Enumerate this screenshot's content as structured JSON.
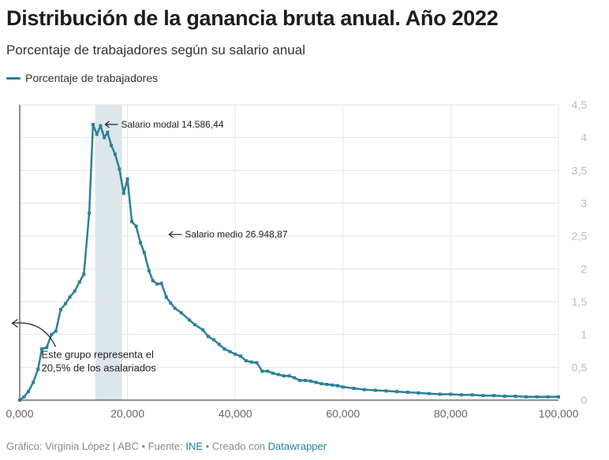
{
  "header": {
    "title": "Distribución de la ganancia bruta anual. Año 2022",
    "subtitle": "Porcentaje de trabajadores según su salario anual"
  },
  "legend": {
    "label": "Porcentaje de trabajadores",
    "color": "#2a8199"
  },
  "footer": {
    "prefix": "Gráfico: Virginia López | ABC • Fuente: ",
    "source_link": "INE",
    "middle": " • Creado con ",
    "tool_link": "Datawrapper"
  },
  "colors": {
    "line": "#2a8199",
    "highlight_band": "#dce6eb",
    "grid": "#e6e6e6",
    "tick_text": "#bbbbbb",
    "x_tick_text": "#666666"
  },
  "chart_data": {
    "type": "line",
    "xlim": [
      0,
      100000
    ],
    "ylim": [
      0,
      4.5
    ],
    "grid": true,
    "legend_position": "top-left",
    "x_ticks": [
      0,
      20000,
      40000,
      60000,
      80000,
      100000
    ],
    "x_tick_labels": [
      "0,000",
      "20,000",
      "40,000",
      "60,000",
      "80,000",
      "100,000"
    ],
    "y_ticks": [
      0,
      0.5,
      1,
      1.5,
      2,
      2.5,
      3,
      3.5,
      4,
      4.5
    ],
    "y_tick_labels": [
      "0",
      "0,5",
      "1",
      "1,5",
      "2",
      "2,5",
      "3",
      "3,5",
      "4",
      "4,5"
    ],
    "highlight_band": {
      "x_start": 14000,
      "x_end": 19000
    },
    "annotations": [
      {
        "text": "Salario modal 14.586,44",
        "x": 15000,
        "y": 4.2
      },
      {
        "text": "Salario medio 26.948,87",
        "x": 27000,
        "y": 2.5
      },
      {
        "lines": [
          "Este grupo representa el",
          "20,5% de los asalariados"
        ],
        "x": 17500,
        "y": 1.1
      }
    ],
    "series": [
      {
        "name": "Porcentaje de trabajadores",
        "x": [
          0,
          800,
          1600,
          2500,
          3400,
          4100,
          5000,
          5900,
          6700,
          7600,
          8500,
          9300,
          10200,
          11100,
          11900,
          12900,
          13600,
          14300,
          15000,
          15700,
          16300,
          17000,
          17700,
          18500,
          19300,
          20000,
          20800,
          21600,
          22400,
          23100,
          24000,
          24700,
          25500,
          26300,
          27200,
          28000,
          28800,
          30000,
          31500,
          32500,
          34000,
          35000,
          36000,
          37000,
          38000,
          39000,
          40000,
          41000,
          42000,
          43000,
          44000,
          45000,
          46000,
          47000,
          48000,
          49000,
          50000,
          51000,
          52000,
          53000,
          54000,
          55000,
          56000,
          57000,
          58000,
          59000,
          60000,
          62000,
          64000,
          66000,
          68000,
          70000,
          72000,
          74000,
          76000,
          78000,
          80000,
          82000,
          84000,
          86000,
          88000,
          90000,
          92000,
          94000,
          96000,
          98000,
          100000
        ],
        "values": [
          0,
          0.05,
          0.13,
          0.27,
          0.47,
          0.78,
          0.8,
          1.0,
          1.05,
          1.38,
          1.47,
          1.57,
          1.66,
          1.8,
          1.92,
          2.85,
          4.2,
          4.05,
          4.18,
          4.0,
          4.08,
          3.88,
          3.75,
          3.52,
          3.15,
          3.37,
          2.72,
          2.65,
          2.4,
          2.25,
          1.97,
          1.82,
          1.77,
          1.78,
          1.57,
          1.48,
          1.4,
          1.33,
          1.22,
          1.15,
          1.07,
          0.97,
          0.92,
          0.85,
          0.78,
          0.74,
          0.7,
          0.67,
          0.6,
          0.58,
          0.57,
          0.44,
          0.44,
          0.41,
          0.39,
          0.37,
          0.37,
          0.34,
          0.3,
          0.3,
          0.29,
          0.27,
          0.25,
          0.24,
          0.23,
          0.22,
          0.2,
          0.18,
          0.16,
          0.15,
          0.14,
          0.13,
          0.12,
          0.11,
          0.1,
          0.09,
          0.09,
          0.08,
          0.08,
          0.07,
          0.07,
          0.06,
          0.06,
          0.05,
          0.05,
          0.05,
          0.05
        ]
      }
    ]
  }
}
